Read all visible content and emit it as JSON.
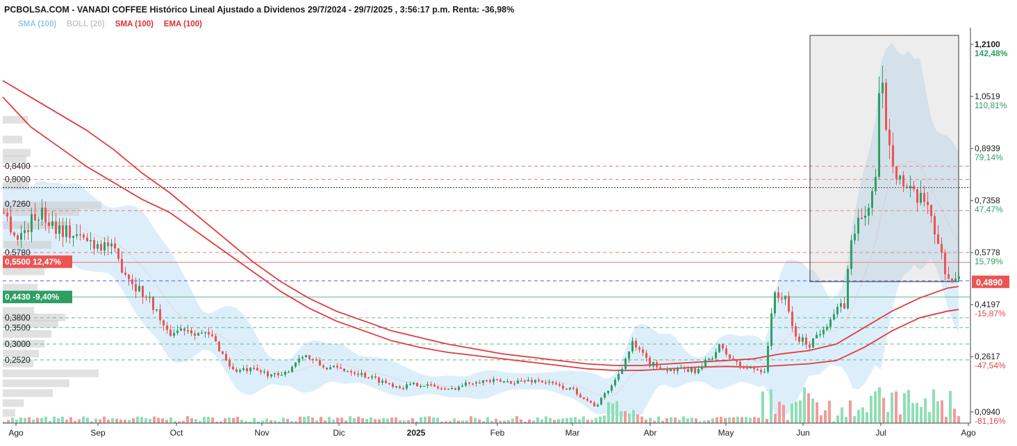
{
  "header": {
    "title": "PCBOLSA.COM - VANADI COFFEE Histórico Lineal Ajustado a Dividenos 29/7/2024 - 29/7/2025 , 3:56:17 p.m. Renta: -36,98%"
  },
  "legend": [
    {
      "label": "SMA (100)",
      "color": "#8fc8ec"
    },
    {
      "label": "BOLL (20)",
      "color": "#c8c8c8"
    },
    {
      "label": "SMA (100)",
      "color": "#e03030"
    },
    {
      "label": "EMA (100)",
      "color": "#e03030"
    }
  ],
  "colors": {
    "up": "#2e9e63",
    "down": "#ec5353",
    "vol_up": "#8edfb4",
    "vol_down": "#f29a9a",
    "band_fill": "#d7ebfa",
    "ma_line": "#e03b3b",
    "level_red": "#f07070",
    "level_green": "#5fb58a"
  },
  "chart_data": {
    "type": "candlestick",
    "ylim": [
      0.06,
      1.25
    ],
    "x_labels": [
      "Ago",
      "Sep",
      "Oct",
      "Nov",
      "Dic",
      "2025",
      "Feb",
      "Mar",
      "Abr",
      "May",
      "Jun",
      "Jul",
      "Ago"
    ],
    "y_ticks_right": [
      {
        "value": 1.21,
        "label": "1,2100",
        "pct": "142,48%"
      },
      {
        "value": 1.0519,
        "label": "1,0519",
        "pct": "110,81%"
      },
      {
        "value": 0.8939,
        "label": "0,8939",
        "pct": "79,14%"
      },
      {
        "value": 0.7358,
        "label": "0,7358",
        "pct": "47,47%"
      },
      {
        "value": 0.5778,
        "label": "0,5778",
        "pct": "15,79%"
      },
      {
        "value": 0.4197,
        "label": "0,4197",
        "pct": "-15,87%"
      },
      {
        "value": 0.2617,
        "label": "0,2617",
        "pct": "-47,54%"
      },
      {
        "value": 0.094,
        "label": "0,0940",
        "pct": "-81,16%"
      }
    ],
    "current_price": {
      "value": 0.489,
      "label": "0,4890"
    },
    "left_levels": [
      {
        "value": 0.84,
        "label": "0,8400"
      },
      {
        "value": 0.8,
        "label": "0,8000"
      },
      {
        "value": 0.726,
        "label": "0,7260"
      },
      {
        "value": 0.578,
        "label": "0,5780"
      },
      {
        "value": 0.38,
        "label": "0,3800"
      },
      {
        "value": 0.35,
        "label": "0,3500"
      },
      {
        "value": 0.3,
        "label": "0,3000"
      },
      {
        "value": 0.252,
        "label": "0,2520"
      }
    ],
    "left_tags": [
      {
        "value": 0.55,
        "label": "0,5500",
        "pct": "12,47%",
        "color": "#ec5353"
      },
      {
        "value": 0.443,
        "label": "0,4430",
        "pct": "-9,40%",
        "color": "#2e9e63"
      }
    ],
    "hlines": [
      {
        "value": 0.84,
        "style": "dash",
        "color": "red"
      },
      {
        "value": 0.8,
        "style": "dash",
        "color": "red"
      },
      {
        "value": 0.775,
        "style": "dot",
        "color": "black"
      },
      {
        "value": 0.705,
        "style": "dash",
        "color": "red"
      },
      {
        "value": 0.578,
        "style": "dash",
        "color": "red"
      },
      {
        "value": 0.548,
        "style": "solid",
        "color": "red"
      },
      {
        "value": 0.492,
        "style": "dash",
        "color": "blue"
      },
      {
        "value": 0.443,
        "style": "solid",
        "color": "green"
      },
      {
        "value": 0.38,
        "style": "dash",
        "color": "green"
      },
      {
        "value": 0.35,
        "style": "dash",
        "color": "green"
      },
      {
        "value": 0.3,
        "style": "dash",
        "color": "green"
      },
      {
        "value": 0.252,
        "style": "dash",
        "color": "green"
      }
    ],
    "series": [
      {
        "name": "SMA (100)",
        "points": [
          [
            0,
            1.05
          ],
          [
            40,
            0.96
          ],
          [
            80,
            0.9
          ],
          [
            120,
            0.84
          ],
          [
            160,
            0.79
          ],
          [
            200,
            0.74
          ],
          [
            240,
            0.7
          ],
          [
            280,
            0.64
          ],
          [
            320,
            0.58
          ],
          [
            360,
            0.52
          ],
          [
            400,
            0.46
          ],
          [
            440,
            0.41
          ],
          [
            480,
            0.37
          ],
          [
            520,
            0.34
          ],
          [
            560,
            0.31
          ],
          [
            600,
            0.29
          ],
          [
            640,
            0.275
          ],
          [
            680,
            0.265
          ],
          [
            720,
            0.255
          ],
          [
            760,
            0.245
          ],
          [
            800,
            0.235
          ],
          [
            840,
            0.225
          ],
          [
            880,
            0.22
          ],
          [
            920,
            0.22
          ],
          [
            960,
            0.225
          ],
          [
            1000,
            0.23
          ],
          [
            1040,
            0.232
          ],
          [
            1080,
            0.23
          ],
          [
            1120,
            0.235
          ],
          [
            1160,
            0.24
          ],
          [
            1200,
            0.25
          ],
          [
            1240,
            0.29
          ],
          [
            1280,
            0.34
          ],
          [
            1320,
            0.38
          ],
          [
            1360,
            0.4
          ],
          [
            1376,
            0.405
          ]
        ]
      },
      {
        "name": "EMA (100)",
        "points": [
          [
            0,
            1.1
          ],
          [
            40,
            1.05
          ],
          [
            80,
            1.0
          ],
          [
            120,
            0.95
          ],
          [
            160,
            0.89
          ],
          [
            200,
            0.82
          ],
          [
            240,
            0.76
          ],
          [
            280,
            0.69
          ],
          [
            320,
            0.62
          ],
          [
            360,
            0.55
          ],
          [
            400,
            0.49
          ],
          [
            440,
            0.44
          ],
          [
            480,
            0.4
          ],
          [
            520,
            0.37
          ],
          [
            560,
            0.34
          ],
          [
            600,
            0.32
          ],
          [
            640,
            0.3
          ],
          [
            680,
            0.285
          ],
          [
            720,
            0.27
          ],
          [
            760,
            0.26
          ],
          [
            800,
            0.25
          ],
          [
            840,
            0.24
          ],
          [
            880,
            0.235
          ],
          [
            920,
            0.235
          ],
          [
            960,
            0.24
          ],
          [
            1000,
            0.245
          ],
          [
            1040,
            0.25
          ],
          [
            1080,
            0.255
          ],
          [
            1120,
            0.27
          ],
          [
            1160,
            0.28
          ],
          [
            1200,
            0.3
          ],
          [
            1240,
            0.35
          ],
          [
            1280,
            0.4
          ],
          [
            1320,
            0.44
          ],
          [
            1360,
            0.47
          ],
          [
            1376,
            0.475
          ]
        ]
      }
    ]
  }
}
